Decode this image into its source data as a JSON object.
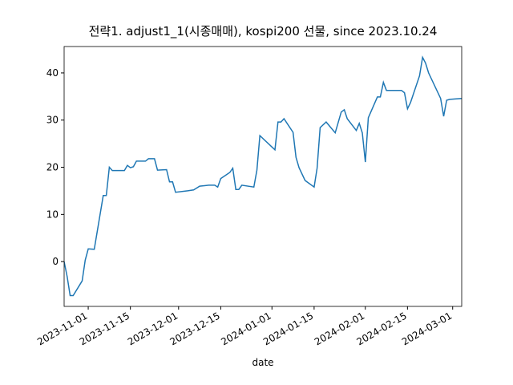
{
  "chart_data": {
    "type": "line",
    "title": "전략1. adjust1_1(시종매매), kospi200 선물, since 2023.10.24",
    "x_label": "date",
    "x": [
      "2023-10-24",
      "2023-10-25",
      "2023-10-26",
      "2023-10-27",
      "2023-10-30",
      "2023-10-31",
      "2023-11-01",
      "2023-11-03",
      "2023-11-06",
      "2023-11-07",
      "2023-11-08",
      "2023-11-09",
      "2023-11-13",
      "2023-11-14",
      "2023-11-15",
      "2023-11-16",
      "2023-11-17",
      "2023-11-20",
      "2023-11-21",
      "2023-11-23",
      "2023-11-24",
      "2023-11-27",
      "2023-11-28",
      "2023-11-29",
      "2023-11-30",
      "2023-12-04",
      "2023-12-06",
      "2023-12-08",
      "2023-12-11",
      "2023-12-13",
      "2023-12-14",
      "2023-12-15",
      "2023-12-18",
      "2023-12-19",
      "2023-12-20",
      "2023-12-21",
      "2023-12-22",
      "2023-12-26",
      "2023-12-27",
      "2023-12-28",
      "2024-01-02",
      "2024-01-03",
      "2024-01-04",
      "2024-01-05",
      "2024-01-08",
      "2024-01-09",
      "2024-01-10",
      "2024-01-12",
      "2024-01-15",
      "2024-01-16",
      "2024-01-17",
      "2024-01-19",
      "2024-01-22",
      "2024-01-24",
      "2024-01-25",
      "2024-01-26",
      "2024-01-29",
      "2024-01-30",
      "2024-01-31",
      "2024-02-01",
      "2024-02-02",
      "2024-02-05",
      "2024-02-06",
      "2024-02-07",
      "2024-02-08",
      "2024-02-13",
      "2024-02-14",
      "2024-02-15",
      "2024-02-16",
      "2024-02-19",
      "2024-02-20",
      "2024-02-21",
      "2024-02-22",
      "2024-02-26",
      "2024-02-27",
      "2024-02-28",
      "2024-02-29",
      "2024-03-04"
    ],
    "series": [
      {
        "color": "#1f77b4",
        "values": [
          0,
          -3.2,
          -7.2,
          -7.2,
          -4.1,
          0.3,
          2.7,
          2.6,
          14,
          14,
          20,
          19.3,
          19.3,
          20.4,
          19.9,
          20.1,
          21.3,
          21.3,
          21.8,
          21.8,
          19.4,
          19.5,
          16.9,
          16.9,
          14.7,
          15.0,
          15.2,
          16.0,
          16.2,
          16.2,
          15.8,
          17.6,
          18.9,
          19.8,
          15.3,
          15.3,
          16.2,
          15.8,
          19.4,
          26.7,
          23.7,
          29.6,
          29.6,
          30.3,
          27.4,
          22.1,
          19.9,
          17.2,
          15.8,
          19.8,
          28.4,
          29.6,
          27.3,
          31.7,
          32.2,
          30.3,
          27.8,
          29.3,
          27.3,
          21.1,
          30.5,
          34.9,
          34.9,
          38.0,
          36.3,
          36.3,
          35.8,
          32.4,
          33.7,
          39.4,
          43.3,
          42.1,
          40.0,
          34.6,
          30.8,
          34.2,
          34.4,
          34.6
        ]
      }
    ],
    "xlim": [
      "2023-10-24",
      "2024-03-04"
    ],
    "xticks": [
      "2023-11-01",
      "2023-11-15",
      "2023-12-01",
      "2023-12-15",
      "2024-01-01",
      "2024-01-15",
      "2024-02-01",
      "2024-02-15",
      "2024-03-01"
    ],
    "ylim": [
      -9.5,
      45.6
    ],
    "yticks": [
      0,
      10,
      20,
      30,
      40
    ]
  }
}
